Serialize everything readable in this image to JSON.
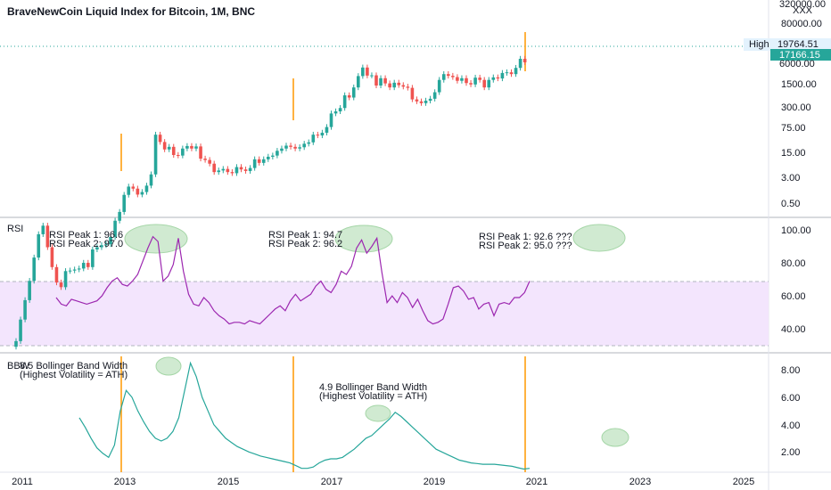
{
  "header": {
    "title": "BraveNewCoin Liquid Index for Bitcoin, 1M, BNC"
  },
  "colors": {
    "up": "#26a69a",
    "down": "#ef5350",
    "rsi": "#9c27b0",
    "rsi_band": "#f3e5fd",
    "bbw": "#26a69a",
    "vline": "#ff9800",
    "ellipse": "#c8e6c9",
    "price_tag": "#26a69a"
  },
  "price_pane": {
    "y_ticks": [
      "320000.00",
      "80000.00",
      "20000.00",
      "6000.00",
      "1500.00",
      "300.00",
      "75.00",
      "15.00",
      "3.00",
      "0.50"
    ],
    "axis_extra_label": "XXX",
    "high_label": "High",
    "high_value": "19764.51",
    "last_value": "17166.15"
  },
  "rsi_pane": {
    "label": "RSI",
    "y_ticks": [
      "100.00",
      "80.00",
      "60.00",
      "40.00"
    ],
    "notes": [
      {
        "line1": "RSI Peak 1: 96.6",
        "line2": "RSI Peak 2: 97.0"
      },
      {
        "line1": "RSI Peak 1: 94.7",
        "line2": "RSI Peak 2: 96.2"
      },
      {
        "line1": "RSI Peak 1: 92.6 ???",
        "line2": "RSI Peak 2: 95.0 ???"
      }
    ]
  },
  "bbw_pane": {
    "label": "BBW",
    "y_ticks": [
      "8.00",
      "6.00",
      "4.00",
      "2.00"
    ],
    "notes": [
      {
        "line1": "8.5 Bollinger Band Width",
        "line2": "(Highest Volatility = ATH)"
      },
      {
        "line1": "4.9 Bollinger Band Width",
        "line2": "(Highest Volatility = ATH)"
      }
    ]
  },
  "x_axis": {
    "ticks": [
      "2011",
      "2013",
      "2015",
      "2017",
      "2019",
      "2021",
      "2023",
      "2025"
    ]
  },
  "chart_data": [
    {
      "type": "candlestick",
      "title": "BraveNewCoin Liquid Index for Bitcoin, 1M, BNC",
      "scale": "log",
      "ylim": [
        0.3,
        320000
      ],
      "x_range": [
        2010.6,
        2025.8
      ],
      "close": [
        0.3,
        0.7,
        1.5,
        3.2,
        8,
        20,
        28,
        12,
        5.5,
        3,
        2.5,
        4.7,
        4.8,
        5,
        5.2,
        6.5,
        5.5,
        11,
        12,
        13,
        13.5,
        18,
        34,
        48,
        94,
        130,
        120,
        95,
        105,
        135,
        210,
        1000,
        750,
        560,
        620,
        450,
        440,
        580,
        640,
        580,
        630,
        390,
        370,
        320,
        230,
        245,
        260,
        230,
        220,
        280,
        255,
        240,
        270,
        380,
        330,
        380,
        420,
        440,
        530,
        580,
        650,
        620,
        580,
        610,
        700,
        740,
        1000,
        970,
        1080,
        1350,
        2300,
        2500,
        2850,
        4700,
        4300,
        6400,
        10000,
        14000,
        10200,
        10300,
        6900,
        9200,
        7500,
        6400,
        7700,
        7000,
        6600,
        6300,
        4000,
        3700,
        3450,
        3800,
        4100,
        5300,
        8600,
        10800,
        10100,
        9600,
        8300,
        9200,
        7600,
        7200,
        9400,
        8600,
        6400,
        8600,
        9500,
        9100,
        11300,
        11600,
        10800,
        13800,
        19700,
        17166
      ],
      "rsi": {
        "ylim": [
          30,
          110
        ],
        "values": [
          60,
          56,
          55,
          59,
          58,
          57,
          56,
          57,
          58,
          61,
          66,
          70,
          72,
          68,
          67,
          70,
          74,
          82,
          90,
          97,
          94,
          70,
          73,
          80,
          96,
          76,
          62,
          56,
          55,
          60,
          57,
          52,
          49,
          47,
          44,
          45,
          45,
          44,
          46,
          45,
          44,
          47,
          50,
          53,
          55,
          52,
          58,
          62,
          58,
          60,
          62,
          67,
          70,
          65,
          63,
          68,
          76,
          74,
          79,
          90,
          95,
          87,
          91,
          96,
          75,
          57,
          61,
          57,
          63,
          60,
          54,
          59,
          52,
          46,
          44,
          45,
          47,
          56,
          66,
          67,
          64,
          59,
          60,
          53,
          56,
          57,
          49,
          56,
          57,
          56,
          60,
          60,
          63,
          70
        ]
      },
      "bbw": {
        "ylim": [
          0,
          9
        ],
        "values": [
          4.5,
          3.8,
          3.0,
          2.3,
          1.9,
          1.6,
          2.5,
          5.0,
          6.5,
          6.0,
          5.0,
          4.2,
          3.5,
          3.0,
          2.8,
          3.0,
          3.5,
          4.5,
          6.5,
          8.5,
          7.5,
          6.0,
          5.0,
          4.0,
          3.5,
          3.0,
          2.7,
          2.4,
          2.2,
          2.0,
          1.85,
          1.7,
          1.6,
          1.5,
          1.4,
          1.3,
          1.2,
          1.0,
          0.8,
          0.8,
          0.9,
          1.2,
          1.4,
          1.5,
          1.5,
          1.6,
          1.9,
          2.2,
          2.6,
          3.0,
          3.2,
          3.6,
          4.0,
          4.4,
          4.9,
          4.6,
          4.2,
          3.8,
          3.4,
          3.0,
          2.6,
          2.2,
          2.0,
          1.8,
          1.6,
          1.4,
          1.3,
          1.2,
          1.15,
          1.1,
          1.1,
          1.1,
          1.05,
          1.0,
          0.95,
          0.85,
          0.75,
          0.8
        ]
      }
    }
  ]
}
